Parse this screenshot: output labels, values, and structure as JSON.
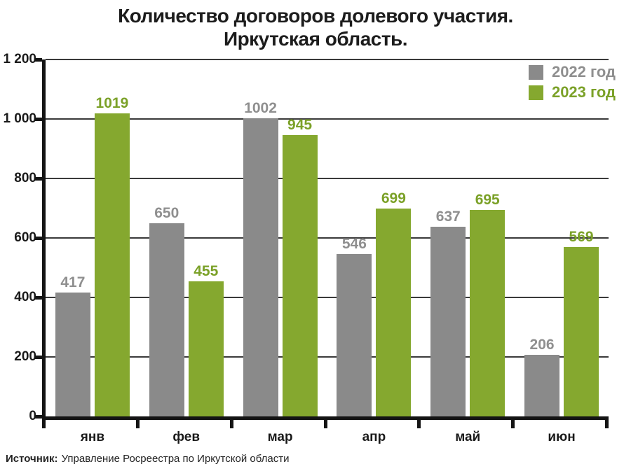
{
  "title": {
    "line1": "Количество договоров долевого участия.",
    "line2": "Иркутская область."
  },
  "source": {
    "label": "Источник:",
    "text": "Управление Росреестра по Иркутской области"
  },
  "colors": {
    "series_2022": "#8A8A8A",
    "series_2023": "#85A82F",
    "value_label_2022": "#8F8F8F",
    "value_label_2023": "#7BA128",
    "axis": "#141414",
    "gridline": "#3A3A3A",
    "text": "#1C1C1C",
    "background": "#FFFFFF"
  },
  "chart_data": {
    "type": "bar",
    "title": "Количество договоров долевого участия. Иркутская область.",
    "categories": [
      "янв",
      "фев",
      "мар",
      "апр",
      "май",
      "июн"
    ],
    "series": [
      {
        "name": "2022 год",
        "color": "#8A8A8A",
        "label_color": "#8F8F8F",
        "values": [
          417,
          650,
          1002,
          546,
          637,
          206
        ]
      },
      {
        "name": "2023 год",
        "color": "#85A82F",
        "label_color": "#7BA128",
        "values": [
          1019,
          455,
          945,
          699,
          695,
          569
        ]
      }
    ],
    "xlabel": "",
    "ylabel": "",
    "ylim": [
      0,
      1200
    ],
    "ytick_step": 200,
    "ytick_labels": [
      "0",
      "200",
      "400",
      "600",
      "800",
      "1 000",
      "1 200"
    ],
    "grid": true,
    "legend_position": "top-right",
    "bar_value_labels": true
  }
}
